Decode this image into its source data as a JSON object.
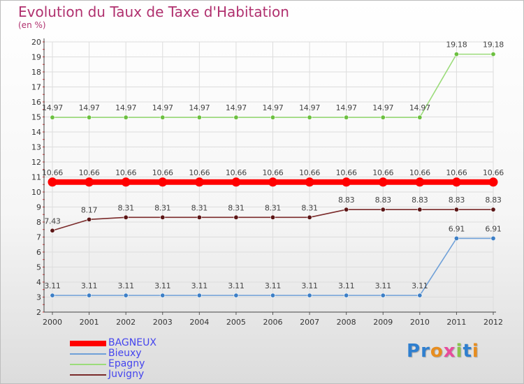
{
  "title": "Evolution du Taux de Taxe d'Habitation",
  "subtitle": "(en %)",
  "logo": {
    "text": "Proxiti",
    "colors": [
      "#2f7fcf",
      "#2f7fcf",
      "#e78d1f",
      "#e74c9c",
      "#8bc34a",
      "#2f7fcf",
      "#e78d1f"
    ]
  },
  "chart_data": {
    "type": "line",
    "title": "Evolution du Taux de Taxe d'Habitation",
    "ylabel": "(en %)",
    "xlabel": "",
    "categories": [
      "2000",
      "2001",
      "2002",
      "2003",
      "2004",
      "2005",
      "2006",
      "2007",
      "2008",
      "2009",
      "2010",
      "2011",
      "2012"
    ],
    "ylim": [
      2,
      20
    ],
    "yticks": [
      2,
      3,
      4,
      5,
      6,
      7,
      8,
      9,
      10,
      11,
      12,
      13,
      14,
      15,
      16,
      17,
      18,
      19,
      20
    ],
    "grid": true,
    "legend_position": "bottom-left",
    "series": [
      {
        "name": "BAGNEUX",
        "color": "#ff0000",
        "thick": true,
        "values": [
          10.66,
          10.66,
          10.66,
          10.66,
          10.66,
          10.66,
          10.66,
          10.66,
          10.66,
          10.66,
          10.66,
          10.66,
          10.66
        ],
        "labels": [
          "10.66",
          "10.66",
          "10.66",
          "10.66",
          "10.66",
          "10.66",
          "10.66",
          "10.66",
          "10.66",
          "10.66",
          "10.66",
          "10.66",
          "10.66"
        ]
      },
      {
        "name": "Bieuxy",
        "color": "#6fa0d8",
        "point_color": "#3d7fc6",
        "values": [
          3.11,
          3.11,
          3.11,
          3.11,
          3.11,
          3.11,
          3.11,
          3.11,
          3.11,
          3.11,
          3.11,
          6.91,
          6.91
        ],
        "labels": [
          "3.11",
          "3.11",
          "3.11",
          "3.11",
          "3.11",
          "3.11",
          "3.11",
          "3.11",
          "3.11",
          "3.11",
          "3.11",
          "6.91",
          "6.91"
        ]
      },
      {
        "name": "Epagny",
        "color": "#9bdc7a",
        "point_color": "#6cc040",
        "values": [
          14.97,
          14.97,
          14.97,
          14.97,
          14.97,
          14.97,
          14.97,
          14.97,
          14.97,
          14.97,
          14.97,
          19.18,
          19.18
        ],
        "labels": [
          "14.97",
          "14.97",
          "14.97",
          "14.97",
          "14.97",
          "14.97",
          "14.97",
          "14.97",
          "14.97",
          "14.97",
          "14.97",
          "19.18",
          "19.18"
        ]
      },
      {
        "name": "Juvigny",
        "color": "#7a2a2a",
        "point_color": "#5c1616",
        "values": [
          7.43,
          8.17,
          8.31,
          8.31,
          8.31,
          8.31,
          8.31,
          8.31,
          8.83,
          8.83,
          8.83,
          8.83,
          8.83
        ],
        "labels": [
          "7.43",
          "8.17",
          "8.31",
          "8.31",
          "8.31",
          "8.31",
          "8.31",
          "8.31",
          "8.83",
          "8.83",
          "8.83",
          "8.83",
          "8.83"
        ]
      }
    ]
  }
}
